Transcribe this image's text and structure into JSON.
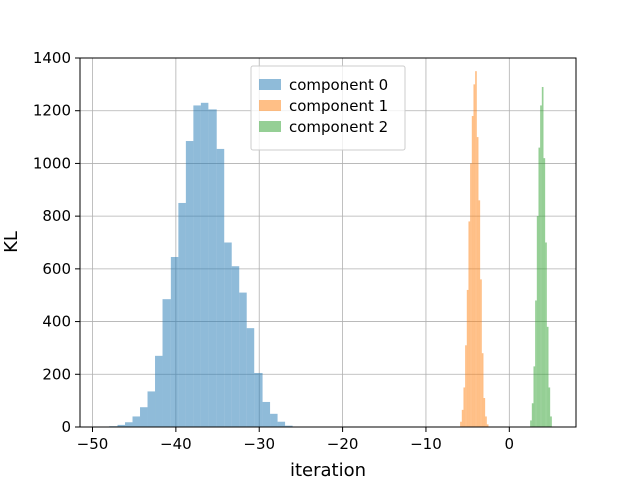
{
  "chart_data": {
    "type": "histogram",
    "title": "",
    "xlabel": "iteration",
    "ylabel": "KL",
    "xlim": [
      -51.5,
      8
    ],
    "ylim": [
      0,
      1400
    ],
    "x_ticks": [
      -50,
      -40,
      -30,
      -20,
      -10,
      0
    ],
    "y_ticks": [
      0,
      200,
      400,
      600,
      800,
      1000,
      1200,
      1400
    ],
    "grid": true,
    "legend_position": "top-center",
    "series": [
      {
        "name": "component 0",
        "color": "#1f77b4",
        "opacity": 0.5,
        "bin_edges": [
          -48.0,
          -47.0,
          -46.1,
          -45.2,
          -44.3,
          -43.4,
          -42.5,
          -41.6,
          -40.6,
          -39.7,
          -38.8,
          -37.9,
          -37.0,
          -36.1,
          -35.1,
          -34.2,
          -33.3,
          -32.4,
          -31.5,
          -30.6,
          -29.6,
          -28.7,
          -27.8,
          -26.9,
          -26.0
        ],
        "counts": [
          3,
          8,
          18,
          40,
          75,
          135,
          270,
          485,
          645,
          850,
          1085,
          1220,
          1230,
          1205,
          1055,
          700,
          610,
          510,
          375,
          205,
          95,
          50,
          20,
          5
        ]
      },
      {
        "name": "component 1",
        "color": "#ff7f0e",
        "opacity": 0.5,
        "bin_edges": [
          -5.9,
          -5.7,
          -5.5,
          -5.3,
          -5.1,
          -4.9,
          -4.7,
          -4.5,
          -4.3,
          -4.1,
          -3.9,
          -3.7,
          -3.5,
          -3.3,
          -3.1,
          -2.9,
          -2.7,
          -2.5
        ],
        "counts": [
          20,
          65,
          150,
          310,
          520,
          780,
          1000,
          1180,
          1300,
          1350,
          1100,
          860,
          560,
          280,
          110,
          40,
          10
        ]
      },
      {
        "name": "component 2",
        "color": "#2ca02c",
        "opacity": 0.5,
        "bin_edges": [
          2.5,
          2.7,
          2.9,
          3.1,
          3.3,
          3.5,
          3.7,
          3.9,
          4.1,
          4.3,
          4.5,
          4.7,
          4.9,
          5.1
        ],
        "counts": [
          25,
          90,
          230,
          480,
          800,
          1060,
          1220,
          1290,
          1020,
          700,
          380,
          150,
          40
        ]
      }
    ]
  }
}
